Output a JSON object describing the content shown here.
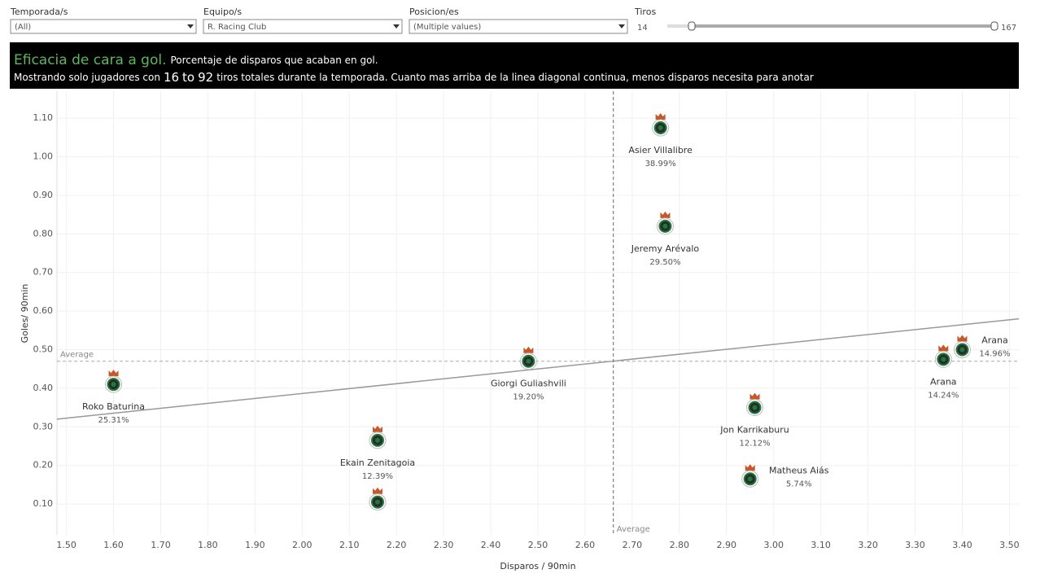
{
  "filters": [
    {
      "label": "Temporada/s",
      "value": "(All)"
    },
    {
      "label": "Equipo/s",
      "value": "R. Racing Club"
    },
    {
      "label": "Posicion/es",
      "value": "(Multiple values)"
    }
  ],
  "slider": {
    "label": "Tiros",
    "min": 14,
    "max": 167
  },
  "banner": {
    "title": "Eficacia de cara a gol.",
    "subtitle": "Porcentaje de disparos que acaban en gol.",
    "line_start": "Mostrando solo jugadores con",
    "range_low": 16,
    "range_sep": "to",
    "range_high": 92,
    "line_end": "tiros totales durante la temporada. Cuanto mas arriba de la linea diagonal continua, menos disparos necesita para anotar"
  },
  "chart_data": {
    "type": "scatter",
    "x_label": "Disparos / 90min",
    "y_label": "Goles/ 90min",
    "x": [
      2.76,
      2.77,
      2.48,
      1.6,
      2.16,
      2.16,
      2.96,
      2.95,
      3.36,
      3.4
    ],
    "values": [
      1.075,
      0.82,
      0.47,
      0.41,
      0.265,
      0.105,
      0.35,
      0.165,
      0.475,
      0.5
    ],
    "point_labels": [
      "Asier Villalibre",
      "Jeremy Arévalo",
      "Giorgi Guliashvili",
      "Roko Baturina",
      "Ekain Zenitagoia",
      null,
      "Jon Karrikaburu",
      "Matheus Aiás",
      "Arana",
      "Arana"
    ],
    "efficiency": {
      "values": [
        38.99,
        29.5,
        19.2,
        25.31,
        12.39,
        null,
        12.12,
        5.74,
        14.24,
        14.96
      ],
      "value_labels": [
        "38.99%",
        "29.50%",
        "19.20%",
        "25.31%",
        "12.39%",
        null,
        "12.12%",
        "5.74%",
        "14.24%",
        "14.96%"
      ]
    },
    "average_x": 2.66,
    "average_y": 0.47,
    "average_label": "Average",
    "trend": {
      "x": [
        1.48,
        3.52
      ],
      "y": [
        0.32,
        0.58
      ]
    },
    "xlim": [
      1.48,
      3.52
    ],
    "ylim": [
      0.02,
      1.17
    ],
    "xticks": [
      {
        "value": 1.5,
        "label": "1.50"
      },
      {
        "value": 1.6,
        "label": "1.60"
      },
      {
        "value": 1.7,
        "label": "1.70"
      },
      {
        "value": 1.8,
        "label": "1.80"
      },
      {
        "value": 1.9,
        "label": "1.90"
      },
      {
        "value": 2.0,
        "label": "2.00"
      },
      {
        "value": 2.1,
        "label": "2.10"
      },
      {
        "value": 2.2,
        "label": "2.20"
      },
      {
        "value": 2.3,
        "label": "2.30"
      },
      {
        "value": 2.4,
        "label": "2.40"
      },
      {
        "value": 2.5,
        "label": "2.50"
      },
      {
        "value": 2.6,
        "label": "2.60"
      },
      {
        "value": 2.7,
        "label": "2.70"
      },
      {
        "value": 2.8,
        "label": "2.80"
      },
      {
        "value": 2.9,
        "label": "2.90"
      },
      {
        "value": 3.0,
        "label": "3.00"
      },
      {
        "value": 3.1,
        "label": "3.10"
      },
      {
        "value": 3.2,
        "label": "3.20"
      },
      {
        "value": 3.3,
        "label": "3.30"
      },
      {
        "value": 3.4,
        "label": "3.40"
      },
      {
        "value": 3.5,
        "label": "3.50"
      }
    ],
    "yticks": [
      {
        "value": 0.1,
        "label": "0.10"
      },
      {
        "value": 0.2,
        "label": "0.20"
      },
      {
        "value": 0.3,
        "label": "0.30"
      },
      {
        "value": 0.4,
        "label": "0.40"
      },
      {
        "value": 0.5,
        "label": "0.50"
      },
      {
        "value": 0.6,
        "label": "0.60"
      },
      {
        "value": 0.7,
        "label": "0.70"
      },
      {
        "value": 0.8,
        "label": "0.80"
      },
      {
        "value": 0.9,
        "label": "0.90"
      },
      {
        "value": 1.0,
        "label": "1.00"
      },
      {
        "value": 1.1,
        "label": "1.10"
      }
    ],
    "grid": true,
    "trend_color": "#999999",
    "marker_color": "#1e7a3c"
  }
}
